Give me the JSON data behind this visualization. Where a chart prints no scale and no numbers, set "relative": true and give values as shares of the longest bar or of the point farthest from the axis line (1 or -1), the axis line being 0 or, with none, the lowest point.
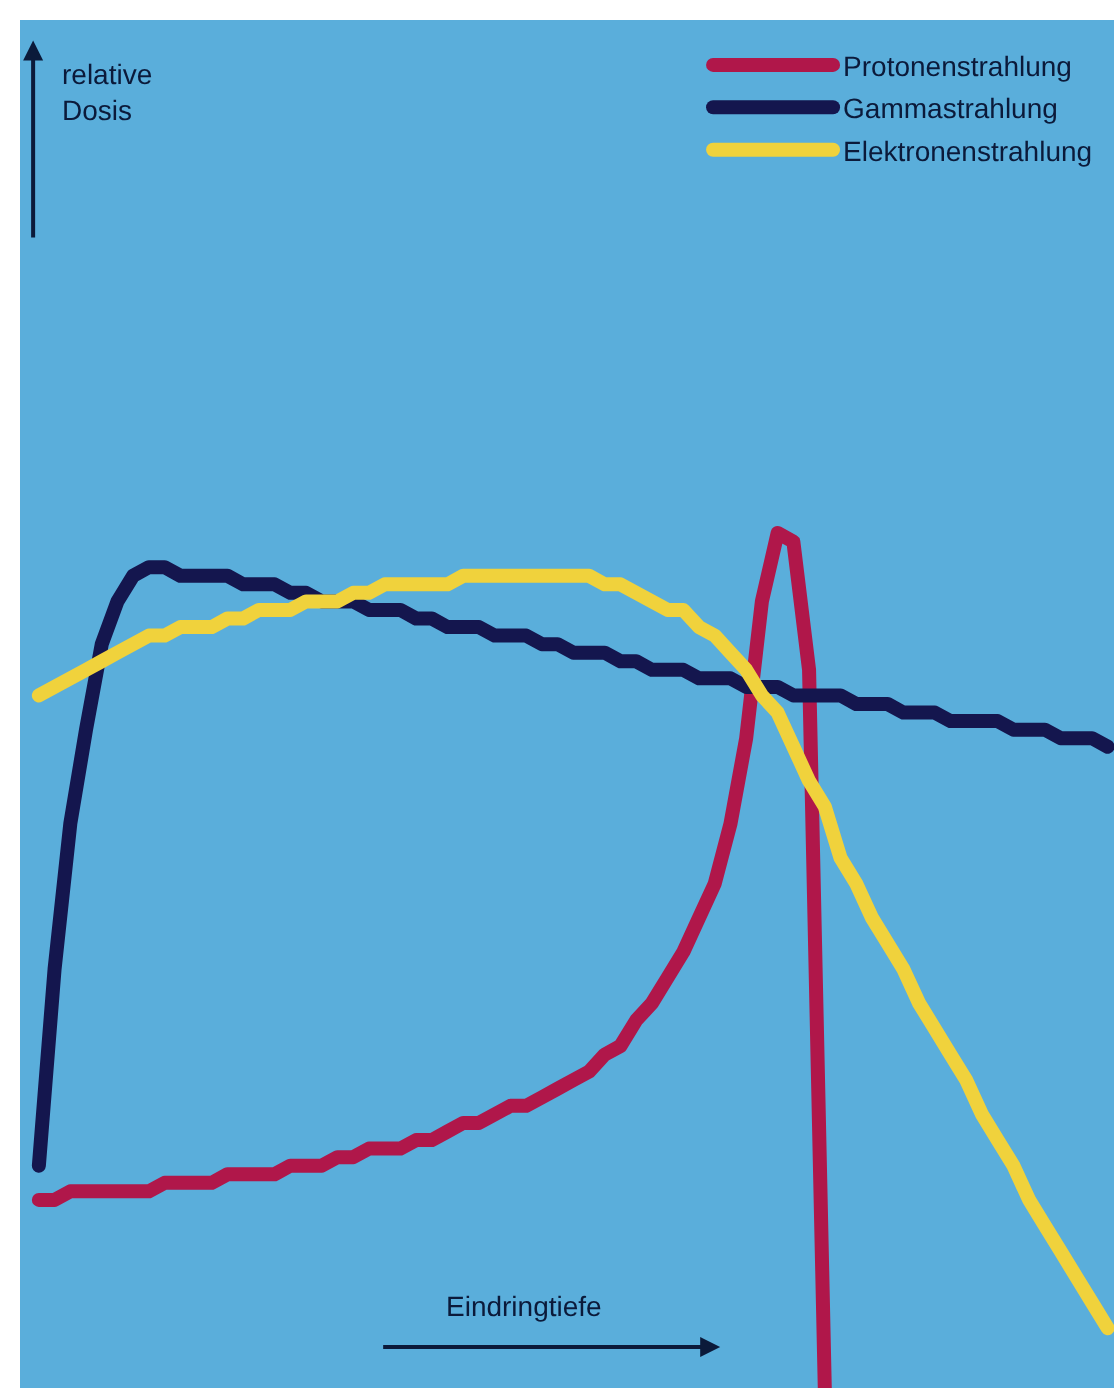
{
  "chart_data": {
    "type": "line",
    "relative": true,
    "xlabel": "Eindringtiefe",
    "annotations": [
      "relative Dosis"
    ],
    "legend": "top right",
    "categories": [
      null,
      null,
      null,
      null,
      null,
      null,
      null,
      null,
      null,
      null,
      null,
      null,
      null,
      null,
      null,
      null,
      null,
      null,
      null,
      null,
      null,
      null,
      null,
      null,
      null,
      null,
      null,
      null,
      null,
      null,
      null,
      null,
      null,
      null,
      null,
      null,
      null,
      null,
      null,
      null,
      null,
      null,
      null,
      null,
      null,
      null,
      null,
      null,
      null,
      null,
      null,
      null,
      null,
      null,
      null,
      null,
      null,
      null,
      null,
      null,
      null,
      null,
      null,
      null,
      null,
      null,
      null,
      null,
      null
    ],
    "series": [
      {
        "name": "Protonenstrahlung",
        "color": "#b0174a",
        "values": [
          0.22,
          0.22,
          0.23,
          0.23,
          0.23,
          0.23,
          0.23,
          0.23,
          0.24,
          0.24,
          0.24,
          0.24,
          0.25,
          0.25,
          0.25,
          0.25,
          0.26,
          0.26,
          0.26,
          0.27,
          0.27,
          0.28,
          0.28,
          0.28,
          0.29,
          0.29,
          0.3,
          0.31,
          0.31,
          0.32,
          0.33,
          0.33,
          0.34,
          0.35,
          0.36,
          0.37,
          0.39,
          0.4,
          0.43,
          0.45,
          0.48,
          0.51,
          0.55,
          0.59,
          0.66,
          0.76,
          0.92,
          1.0,
          0.99,
          0.84,
          0.0,
          null,
          null,
          null,
          null,
          null,
          null,
          null,
          null,
          null,
          null,
          null,
          null,
          null,
          null,
          null,
          null,
          null,
          null
        ]
      },
      {
        "name": "Gammastrahlung",
        "color": "#14164e",
        "values": [
          0.26,
          0.49,
          0.66,
          0.77,
          0.87,
          0.92,
          0.95,
          0.96,
          0.96,
          0.95,
          0.95,
          0.95,
          0.95,
          0.94,
          0.94,
          0.94,
          0.93,
          0.93,
          0.92,
          0.92,
          0.92,
          0.91,
          0.91,
          0.91,
          0.9,
          0.9,
          0.89,
          0.89,
          0.89,
          0.88,
          0.88,
          0.88,
          0.87,
          0.87,
          0.86,
          0.86,
          0.86,
          0.85,
          0.85,
          0.84,
          0.84,
          0.84,
          0.83,
          0.83,
          0.83,
          0.82,
          0.82,
          0.82,
          0.81,
          0.81,
          0.81,
          0.81,
          0.8,
          0.8,
          0.8,
          0.79,
          0.79,
          0.79,
          0.78,
          0.78,
          0.78,
          0.78,
          0.77,
          0.77,
          0.77,
          0.76,
          0.76,
          0.76,
          0.75
        ]
      },
      {
        "name": "Elektronenstrahlung",
        "color": "#f0d23c",
        "values": [
          0.81,
          0.82,
          0.83,
          0.84,
          0.85,
          0.86,
          0.87,
          0.88,
          0.88,
          0.89,
          0.89,
          0.89,
          0.9,
          0.9,
          0.91,
          0.91,
          0.91,
          0.92,
          0.92,
          0.92,
          0.93,
          0.93,
          0.94,
          0.94,
          0.94,
          0.94,
          0.94,
          0.95,
          0.95,
          0.95,
          0.95,
          0.95,
          0.95,
          0.95,
          0.95,
          0.95,
          0.94,
          0.94,
          0.93,
          0.92,
          0.91,
          0.91,
          0.89,
          0.88,
          0.86,
          0.84,
          0.81,
          0.79,
          0.75,
          0.71,
          0.68,
          0.62,
          0.59,
          0.55,
          0.52,
          0.49,
          0.45,
          0.42,
          0.39,
          0.36,
          0.32,
          0.29,
          0.26,
          0.22,
          0.19,
          0.16,
          0.13,
          0.1,
          0.07
        ]
      }
    ]
  }
}
